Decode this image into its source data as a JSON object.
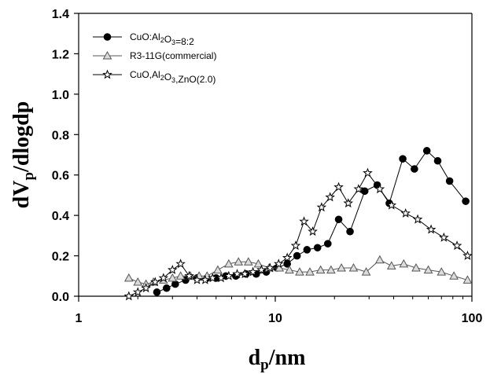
{
  "chart_data": {
    "type": "line",
    "xscale": "log",
    "xlim": [
      1,
      100
    ],
    "ylim": [
      0,
      1.4
    ],
    "x_ticks": [
      1,
      10,
      100
    ],
    "x_tick_labels": [
      "1",
      "10",
      "100"
    ],
    "y_ticks": [
      0,
      0.2,
      0.4,
      0.6,
      0.8,
      1.0,
      1.2,
      1.4
    ],
    "y_tick_labels": [
      "0.0",
      "0.2",
      "0.4",
      "0.6",
      "0.8",
      "1.0",
      "1.2",
      "1.4"
    ],
    "xlabel": {
      "main": "d",
      "sub": "p",
      "rest": "/nm"
    },
    "ylabel": {
      "main": "dV",
      "sub": "p",
      "rest": "/dlogdp"
    },
    "legend_position": "top-left",
    "series": [
      {
        "name": "CuO:Al2O3=8:2",
        "legend": [
          {
            "t": "CuO:Al",
            "s": false
          },
          {
            "t": "2",
            "s": true
          },
          {
            "t": "O",
            "s": false
          },
          {
            "t": "3",
            "s": true
          },
          {
            "t": "=8:2",
            "s": false
          }
        ],
        "marker": "circle-filled",
        "color": "#000000",
        "points": [
          [
            2.5,
            0.02
          ],
          [
            2.8,
            0.04
          ],
          [
            3.1,
            0.06
          ],
          [
            3.5,
            0.08
          ],
          [
            4.0,
            0.09
          ],
          [
            4.5,
            0.09
          ],
          [
            5.0,
            0.09
          ],
          [
            5.6,
            0.1
          ],
          [
            6.3,
            0.1
          ],
          [
            7.1,
            0.11
          ],
          [
            8.0,
            0.11
          ],
          [
            9.0,
            0.12
          ],
          [
            10.2,
            0.14
          ],
          [
            11.5,
            0.16
          ],
          [
            12.9,
            0.2
          ],
          [
            14.5,
            0.23
          ],
          [
            16.4,
            0.24
          ],
          [
            18.5,
            0.26
          ],
          [
            21.0,
            0.38
          ],
          [
            24.0,
            0.32
          ],
          [
            28.5,
            0.52
          ],
          [
            33.0,
            0.55
          ],
          [
            38.0,
            0.46
          ],
          [
            44.5,
            0.68
          ],
          [
            51.0,
            0.63
          ],
          [
            59.0,
            0.72
          ],
          [
            67.0,
            0.67
          ],
          [
            77.0,
            0.57
          ],
          [
            93.0,
            0.47
          ]
        ]
      },
      {
        "name": "R3-11G(commercial)",
        "legend": [
          {
            "t": "R3-11G(commercial)",
            "s": false
          }
        ],
        "marker": "triangle-open",
        "color": "#555555",
        "points": [
          [
            1.8,
            0.09
          ],
          [
            2.0,
            0.07
          ],
          [
            2.2,
            0.06
          ],
          [
            2.4,
            0.07
          ],
          [
            2.7,
            0.08
          ],
          [
            3.0,
            0.09
          ],
          [
            3.3,
            0.1
          ],
          [
            3.7,
            0.1
          ],
          [
            4.1,
            0.1
          ],
          [
            4.5,
            0.1
          ],
          [
            5.1,
            0.13
          ],
          [
            5.8,
            0.16
          ],
          [
            6.5,
            0.17
          ],
          [
            7.3,
            0.17
          ],
          [
            8.2,
            0.16
          ],
          [
            9.3,
            0.14
          ],
          [
            10.5,
            0.14
          ],
          [
            11.8,
            0.13
          ],
          [
            13.3,
            0.12
          ],
          [
            15.0,
            0.12
          ],
          [
            17.0,
            0.13
          ],
          [
            19.2,
            0.13
          ],
          [
            21.7,
            0.14
          ],
          [
            25.0,
            0.14
          ],
          [
            29.0,
            0.12
          ],
          [
            34.0,
            0.18
          ],
          [
            39.0,
            0.15
          ],
          [
            45.0,
            0.16
          ],
          [
            52.0,
            0.14
          ],
          [
            60.0,
            0.13
          ],
          [
            70.0,
            0.12
          ],
          [
            81.0,
            0.1
          ],
          [
            95.0,
            0.08
          ]
        ]
      },
      {
        "name": "CuO,Al2O3,ZnO(2.0)",
        "legend": [
          {
            "t": "CuO,Al",
            "s": false
          },
          {
            "t": "2",
            "s": true
          },
          {
            "t": "O",
            "s": false
          },
          {
            "t": "3",
            "s": true
          },
          {
            "t": ",ZnO(2.0)",
            "s": false
          }
        ],
        "marker": "star-open",
        "color": "#000000",
        "points": [
          [
            1.8,
            0.0
          ],
          [
            2.0,
            0.02
          ],
          [
            2.2,
            0.04
          ],
          [
            2.45,
            0.07
          ],
          [
            2.7,
            0.09
          ],
          [
            3.0,
            0.13
          ],
          [
            3.3,
            0.16
          ],
          [
            3.65,
            0.1
          ],
          [
            4.0,
            0.08
          ],
          [
            4.4,
            0.08
          ],
          [
            4.8,
            0.09
          ],
          [
            5.3,
            0.09
          ],
          [
            5.8,
            0.1
          ],
          [
            6.4,
            0.11
          ],
          [
            7.0,
            0.11
          ],
          [
            7.7,
            0.12
          ],
          [
            8.5,
            0.13
          ],
          [
            9.4,
            0.14
          ],
          [
            10.4,
            0.16
          ],
          [
            11.5,
            0.19
          ],
          [
            12.7,
            0.25
          ],
          [
            14.0,
            0.37
          ],
          [
            15.5,
            0.32
          ],
          [
            17.2,
            0.44
          ],
          [
            19.0,
            0.49
          ],
          [
            21.0,
            0.54
          ],
          [
            23.5,
            0.46
          ],
          [
            26.5,
            0.53
          ],
          [
            29.5,
            0.61
          ],
          [
            34.0,
            0.53
          ],
          [
            39.0,
            0.45
          ],
          [
            46.0,
            0.41
          ],
          [
            53.0,
            0.38
          ],
          [
            62.0,
            0.33
          ],
          [
            72.0,
            0.29
          ],
          [
            84.0,
            0.25
          ],
          [
            95.0,
            0.2
          ]
        ]
      }
    ]
  }
}
